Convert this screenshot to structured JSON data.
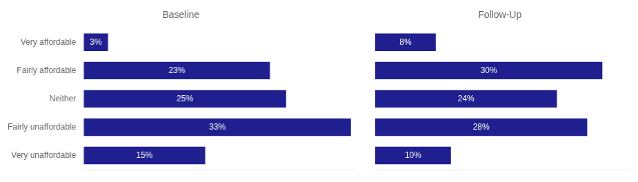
{
  "chart_data": [
    {
      "type": "bar",
      "orientation": "horizontal",
      "title": "Baseline",
      "categories": [
        "Very affordable",
        "Fairly affordable",
        "Neither",
        "Fairly unaffordable",
        "Very unaffordable"
      ],
      "values": [
        3,
        23,
        25,
        33,
        15
      ],
      "value_labels": [
        "3%",
        "23%",
        "25%",
        "33%",
        "15%"
      ],
      "data_labels": true,
      "color": "#1F1F8F",
      "xlim": [
        0,
        33.66
      ],
      "grid": false,
      "tick_labels": "y"
    },
    {
      "type": "bar",
      "orientation": "horizontal",
      "title": "Follow-Up",
      "categories": [
        "Very affordable",
        "Fairly affordable",
        "Neither",
        "Fairly unaffordable",
        "Very unaffordable"
      ],
      "values": [
        8,
        30,
        24,
        28,
        10
      ],
      "value_labels": [
        "8%",
        "30%",
        "24%",
        "28%",
        "10%"
      ],
      "data_labels": true,
      "color": "#1F1F8F",
      "xlim": [
        0,
        33.66
      ],
      "grid": false,
      "tick_labels": false
    }
  ]
}
